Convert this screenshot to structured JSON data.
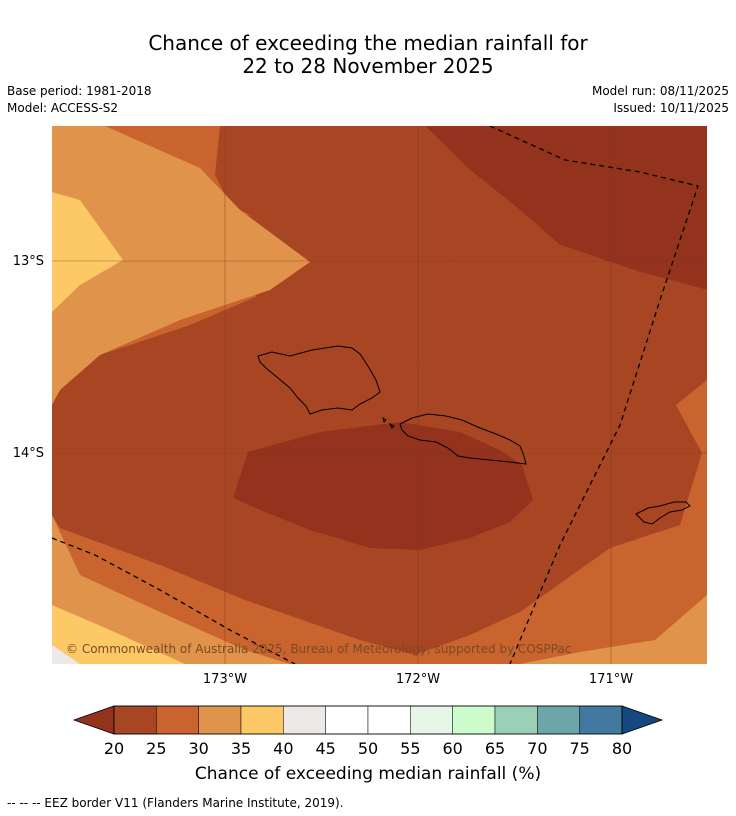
{
  "title": {
    "line1": "Chance of exceeding the median rainfall for",
    "line2": "22 to 28 November 2025"
  },
  "meta": {
    "base_period": "Base period: 1981-2018",
    "model": "Model: ACCESS-S2",
    "model_run": "Model run: 08/11/2025",
    "issued": "Issued: 10/11/2025"
  },
  "map": {
    "lat_labels": [
      "13°S",
      "14°S"
    ],
    "lon_labels": [
      "173°W",
      "172°W",
      "171°W"
    ],
    "copyright": "© Commonwealth of Australia 2025, Bureau of Meteorology, supported by COSPPac"
  },
  "colorbar": {
    "ticks": [
      "20",
      "25",
      "30",
      "35",
      "40",
      "45",
      "50",
      "55",
      "60",
      "65",
      "70",
      "75",
      "80"
    ],
    "colors": [
      "#A84624",
      "#C9642F",
      "#E0934A",
      "#FDC967",
      "#ECE9E6",
      "#FFFFFF",
      "#FFFFFF",
      "#E8F6E8",
      "#CCFBCC",
      "#9BCFB6",
      "#6EA5A8",
      "#41789F"
    ],
    "under_color": "#93331D",
    "over_color": "#13497E",
    "label": "Chance of exceeding median rainfall (%)"
  },
  "footnote": "--  --  -- EEZ border V11 (Flanders Marine Institute, 2019).",
  "palette": {
    "c15": "#93331D",
    "c20": "#A84624",
    "c25": "#C9642F",
    "c30": "#E0934A",
    "c35": "#FDC967",
    "c40": "#ECE9E6"
  }
}
